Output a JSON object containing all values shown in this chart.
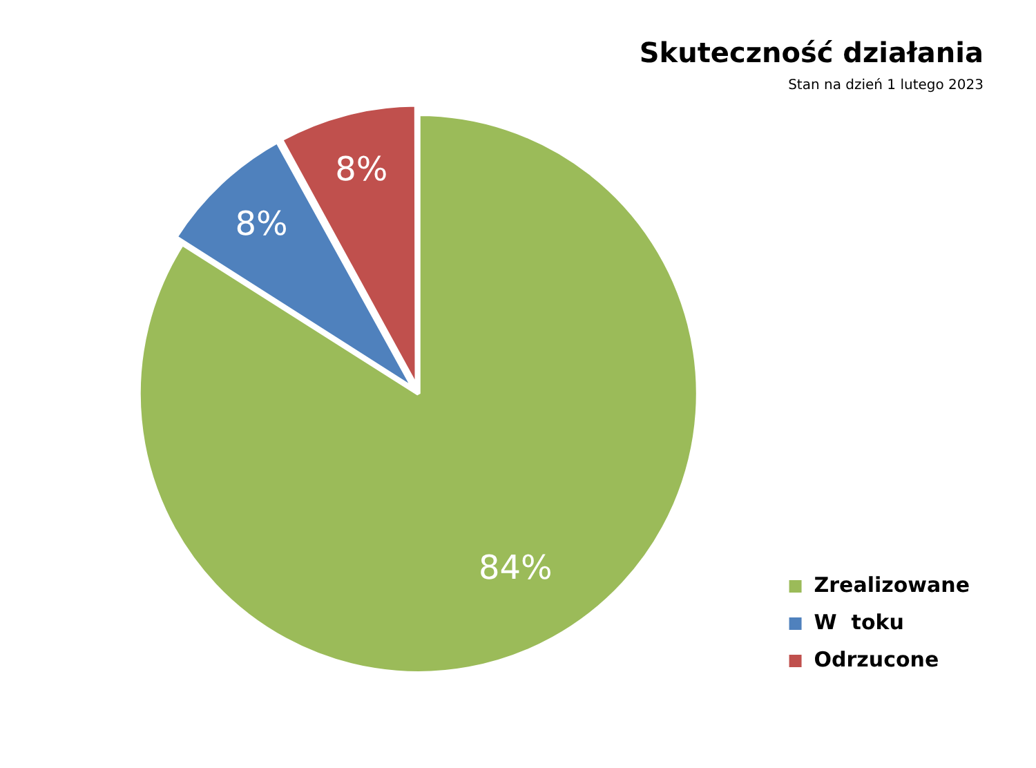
{
  "chart_data": {
    "type": "pie",
    "title": "Skuteczność działania",
    "subtitle": "Stan na dzień 1 lutego 2023",
    "categories": [
      "Zrealizowane",
      "W  toku",
      "Odrzucone"
    ],
    "values": [
      84,
      8,
      8
    ],
    "colors": [
      "#9bbb59",
      "#4f81bd",
      "#c0504d"
    ],
    "value_labels": [
      "84%",
      "8%",
      "8%"
    ],
    "legend": "bottom right"
  }
}
